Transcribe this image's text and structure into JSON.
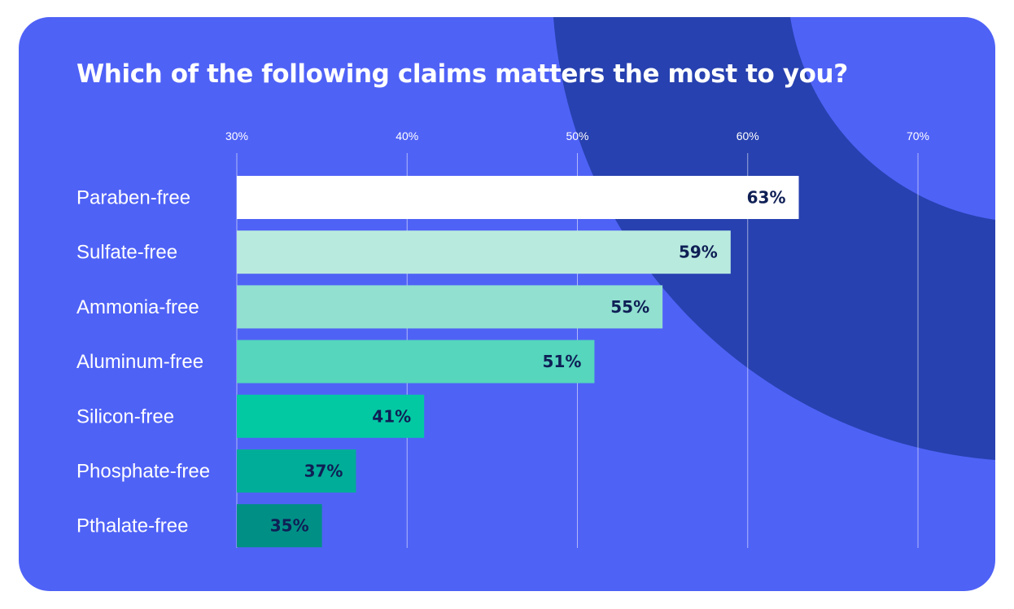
{
  "chart_data": {
    "type": "bar",
    "orientation": "horizontal",
    "title": "Which of the following claims matters the most to you?",
    "categories": [
      "Paraben-free",
      "Sulfate-free",
      "Ammonia-free",
      "Aluminum-free",
      "Silicon-free",
      "Phosphate-free",
      "Pthalate-free"
    ],
    "values": [
      63,
      59,
      55,
      51,
      41,
      37,
      35
    ],
    "value_labels": [
      "63%",
      "59%",
      "55%",
      "51%",
      "41%",
      "37%",
      "35%"
    ],
    "bar_colors": [
      "#ffffff",
      "#b9eade",
      "#92e0d0",
      "#55d6bd",
      "#03c9a3",
      "#00ad98",
      "#008f85"
    ],
    "xlim": [
      30,
      70
    ],
    "xticks": [
      30,
      40,
      50,
      60,
      70
    ],
    "xtick_labels": [
      "30%",
      "40%",
      "50%",
      "60%",
      "70%"
    ],
    "xlabel": "",
    "ylabel": "",
    "grid": true,
    "tick_position": "top",
    "legend": "none"
  },
  "colors": {
    "background": "#4f62f6",
    "decoration": "#2741b0",
    "text": "#ffffff",
    "value_text": "#0f1f55"
  }
}
